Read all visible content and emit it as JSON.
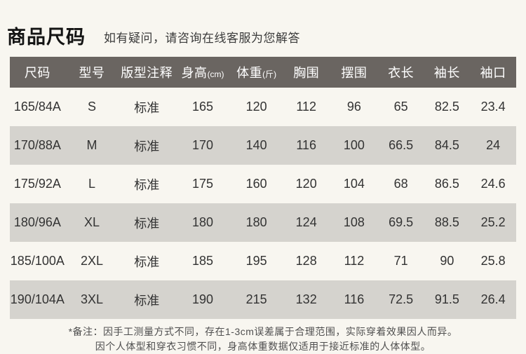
{
  "header": {
    "title": "商品尺码",
    "subtitle": "如有疑问，请咨询在线客服为您解答"
  },
  "table": {
    "columns": [
      {
        "label": "尺码",
        "unit": ""
      },
      {
        "label": "型号",
        "unit": ""
      },
      {
        "label": "版型注释",
        "unit": ""
      },
      {
        "label": "身高",
        "unit": "(cm)"
      },
      {
        "label": "体重",
        "unit": "(斤)"
      },
      {
        "label": "胸围",
        "unit": ""
      },
      {
        "label": "摆围",
        "unit": ""
      },
      {
        "label": "衣长",
        "unit": ""
      },
      {
        "label": "袖长",
        "unit": ""
      },
      {
        "label": "袖口",
        "unit": ""
      }
    ],
    "rows": [
      [
        "165/84A",
        "S",
        "标准",
        "165",
        "120",
        "112",
        "96",
        "65",
        "82.5",
        "23.4"
      ],
      [
        "170/88A",
        "M",
        "标准",
        "170",
        "140",
        "116",
        "100",
        "66.5",
        "84.5",
        "24"
      ],
      [
        "175/92A",
        "L",
        "标准",
        "175",
        "160",
        "120",
        "104",
        "68",
        "86.5",
        "24.6"
      ],
      [
        "180/96A",
        "XL",
        "标准",
        "180",
        "180",
        "124",
        "108",
        "69.5",
        "88.5",
        "25.2"
      ],
      [
        "185/100A",
        "2XL",
        "标准",
        "185",
        "195",
        "128",
        "112",
        "71",
        "90",
        "25.8"
      ],
      [
        "190/104A",
        "3XL",
        "标准",
        "190",
        "215",
        "132",
        "116",
        "72.5",
        "91.5",
        "26.4"
      ]
    ]
  },
  "notes": {
    "line1": "*备注：因手工测量方式不同，存在1-3cm误差属于合理范围，实际穿着效果因人而异。",
    "line2": "因个人体型和穿衣习惯不同，身高体重数据仅适用于接近标准的人体体型。"
  },
  "colors": {
    "page_background": "#f8f6f0",
    "header_bar": "#6a6561",
    "header_text": "#ffffff",
    "row_alt": "#d5d3ce",
    "body_text": "#333333",
    "title_text": "#141414",
    "note_text": "#4f4f4f"
  }
}
